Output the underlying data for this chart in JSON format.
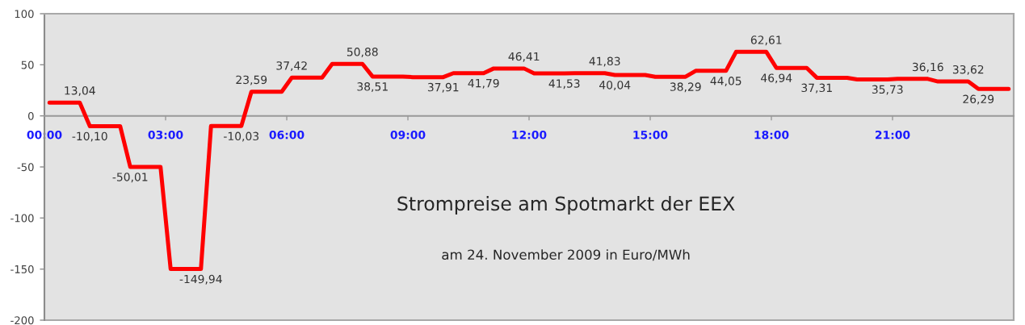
{
  "chart_data": {
    "type": "line",
    "title": "Strompreise am Spotmarkt der EEX",
    "subtitle": "am 24. November 2009 in Euro/MWh",
    "x": [
      0.125,
      0.875,
      1.125,
      1.875,
      2.125,
      2.875,
      3.125,
      3.875,
      4.125,
      4.875,
      5.125,
      5.875,
      6.125,
      6.875,
      7.125,
      7.875,
      8.125,
      8.875,
      9.125,
      9.875,
      10.125,
      10.875,
      11.125,
      11.875,
      12.125,
      12.875,
      13.125,
      13.875,
      14.125,
      14.875,
      15.125,
      15.875,
      16.125,
      16.875,
      17.125,
      17.875,
      18.125,
      18.875,
      19.125,
      19.875,
      20.125,
      20.875,
      21.125,
      21.875,
      22.125,
      22.875,
      23.125,
      23.875
    ],
    "series": [
      {
        "color": "#ff0000",
        "values": [
          13.04,
          13.04,
          -10.1,
          -10.1,
          -50.01,
          -50.01,
          -149.94,
          -149.94,
          -10.03,
          -10.03,
          23.59,
          23.59,
          37.42,
          37.42,
          50.88,
          50.88,
          38.51,
          38.51,
          37.91,
          37.91,
          41.79,
          41.79,
          46.41,
          46.41,
          41.53,
          41.53,
          41.83,
          41.83,
          40.04,
          40.04,
          38.29,
          38.29,
          44.05,
          44.05,
          62.61,
          62.61,
          46.94,
          46.94,
          37.31,
          37.31,
          35.73,
          35.73,
          36.16,
          36.16,
          33.62,
          33.62,
          26.29,
          26.29
        ],
        "value_labels": [
          null,
          "13,04",
          "-10,10",
          null,
          "-50,01",
          null,
          null,
          "-149,94",
          null,
          "-10,03",
          "23,59",
          null,
          "37,42",
          null,
          null,
          "50,88",
          "38,51",
          null,
          null,
          "37,91",
          null,
          "41,79",
          null,
          "46,41",
          null,
          "41,53",
          null,
          "41,83",
          "40,04",
          null,
          null,
          "38,29",
          null,
          "44,05",
          null,
          "62,61",
          "46,94",
          null,
          "37,31",
          null,
          null,
          "35,73",
          null,
          "36,16",
          null,
          "33,62",
          "26,29",
          null
        ]
      }
    ],
    "xlim": [
      0,
      24
    ],
    "xticks": [
      {
        "value": 0,
        "label": "00:00"
      },
      {
        "value": 3,
        "label": "03:00"
      },
      {
        "value": 6,
        "label": "06:00"
      },
      {
        "value": 9,
        "label": "09:00"
      },
      {
        "value": 12,
        "label": "12:00"
      },
      {
        "value": 15,
        "label": "15:00"
      },
      {
        "value": 18,
        "label": "18:00"
      },
      {
        "value": 21,
        "label": "21:00"
      }
    ],
    "ylim": [
      -200,
      100
    ],
    "yticks": [
      -200,
      -150,
      -100,
      -50,
      0,
      50,
      100
    ],
    "grid": false,
    "marker": "none",
    "line_style": "solid"
  }
}
